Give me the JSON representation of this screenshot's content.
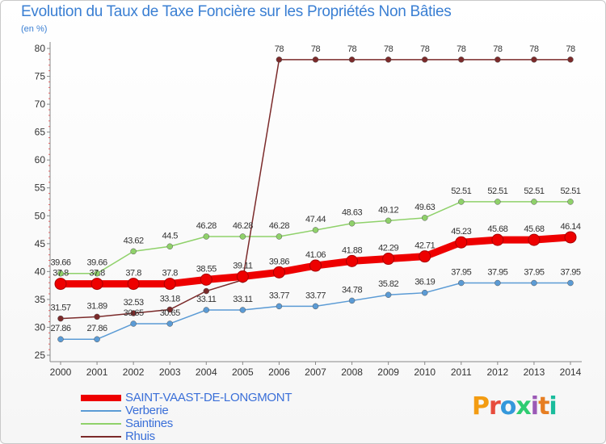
{
  "title": "Evolution du Taux de Taxe Foncière sur les Propriétés Non Bâties",
  "unit_label": "(en %)",
  "logo": {
    "text": "Proxiti",
    "colors": [
      "#f39c12",
      "#e74c3c",
      "#3498db",
      "#2ecc71",
      "#9b59b6",
      "#e67e22",
      "#1abc9c"
    ]
  },
  "chart_data": {
    "type": "line",
    "title": "Evolution du Taux de Taxe Foncière sur les Propriétés Non Bâties",
    "ylabel": "(en %)",
    "xlabel": "",
    "ylim": [
      25,
      80
    ],
    "yticks": [
      25,
      30,
      35,
      40,
      45,
      50,
      55,
      60,
      65,
      70,
      75,
      80
    ],
    "grid": false,
    "categories": [
      "2000",
      "2001",
      "2002",
      "2003",
      "2004",
      "2005",
      "2006",
      "2007",
      "2008",
      "2009",
      "2010",
      "2011",
      "2012",
      "2013",
      "2014"
    ],
    "series": [
      {
        "name": "SAINT-VAAST-DE-LONGMONT",
        "color": "#ee0000",
        "values": [
          37.8,
          37.8,
          37.8,
          37.8,
          38.55,
          39.11,
          39.86,
          41.06,
          41.88,
          42.29,
          42.71,
          45.23,
          45.68,
          45.68,
          46.14
        ],
        "labels": [
          "37.8",
          "37.8",
          "37.8",
          "37.8",
          "38.55",
          "39.11",
          "39.86",
          "41.06",
          "41.88",
          "42.29",
          "42.71",
          "45.23",
          "45.68",
          "45.68",
          "46.14"
        ]
      },
      {
        "name": "Verberie",
        "color": "#5b9bd5",
        "values": [
          27.86,
          27.86,
          30.65,
          30.65,
          33.11,
          33.11,
          33.77,
          33.77,
          34.78,
          35.82,
          36.19,
          37.95,
          37.95,
          37.95,
          37.95
        ],
        "labels": [
          "27.86",
          "27.86",
          "30.65",
          "30.65",
          "33.11",
          "33.11",
          "33.77",
          "33.77",
          "34.78",
          "35.82",
          "36.19",
          "37.95",
          "37.95",
          "37.95",
          "37.95"
        ]
      },
      {
        "name": "Saintines",
        "color": "#8fd16a",
        "values": [
          39.66,
          39.66,
          43.62,
          44.5,
          46.28,
          46.28,
          46.28,
          47.44,
          48.63,
          49.12,
          49.63,
          52.51,
          52.51,
          52.51,
          52.51
        ],
        "labels": [
          "39.66",
          "39.66",
          "43.62",
          "44.5",
          "46.28",
          "46.28",
          "46.28",
          "47.44",
          "48.63",
          "49.12",
          "49.63",
          "52.51",
          "52.51",
          "52.51",
          "52.51"
        ]
      },
      {
        "name": "Rhuis",
        "color": "#7b2a2a",
        "values": [
          31.57,
          31.89,
          32.53,
          33.18,
          36.5,
          38.5,
          78,
          78,
          78,
          78,
          78,
          78,
          78,
          78,
          78
        ],
        "labels": [
          "31.57",
          "31.89",
          "32.53",
          "33.18",
          "",
          "",
          "78",
          "78",
          "78",
          "78",
          "78",
          "78",
          "78",
          "78",
          "78"
        ]
      }
    ]
  }
}
